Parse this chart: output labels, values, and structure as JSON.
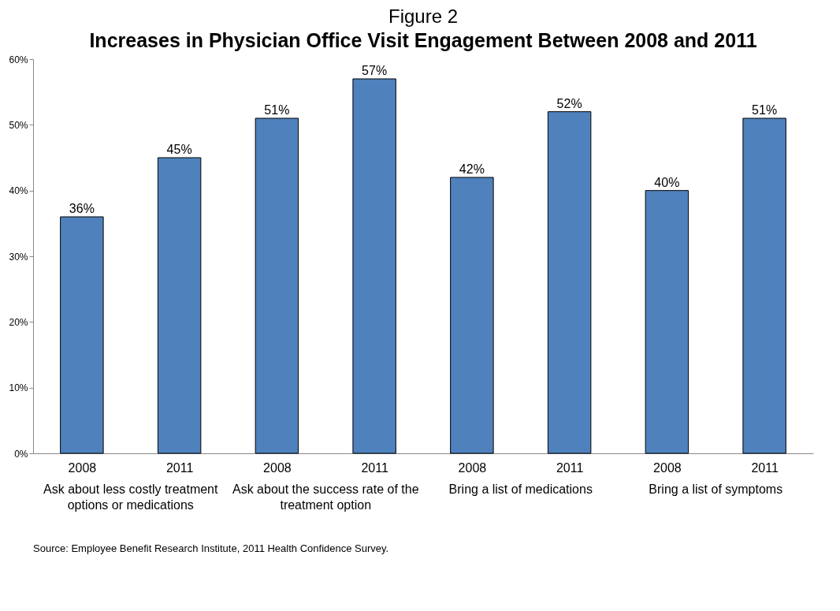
{
  "chart_data": {
    "type": "bar",
    "title": "Figure 2",
    "subtitle": "Increases in Physician Office Visit Engagement Between 2008 and 2011",
    "categories": [
      "2008",
      "2011",
      "2008",
      "2011",
      "2008",
      "2011",
      "2008",
      "2011"
    ],
    "values": [
      36,
      45,
      51,
      57,
      42,
      52,
      40,
      51
    ],
    "value_labels": [
      "36%",
      "45%",
      "51%",
      "57%",
      "42%",
      "52%",
      "40%",
      "51%"
    ],
    "color": "#4f81bd",
    "ylim": [
      0,
      60
    ],
    "yticks": [
      {
        "value": 0,
        "label": "0%"
      },
      {
        "value": 10,
        "label": "10%"
      },
      {
        "value": 20,
        "label": "20%"
      },
      {
        "value": 30,
        "label": "30%"
      },
      {
        "value": 40,
        "label": "40%"
      },
      {
        "value": 50,
        "label": "50%"
      },
      {
        "value": 60,
        "label": "60%"
      }
    ],
    "grid": false,
    "annotations": [
      "Ask about less costly treatment options or medications",
      "Ask about the success rate of the treatment option",
      "Bring a list of medications",
      "Bring a list of symptoms",
      "Source: Employee Benefit Research Institute, 2011 Health Confidence Survey."
    ]
  }
}
